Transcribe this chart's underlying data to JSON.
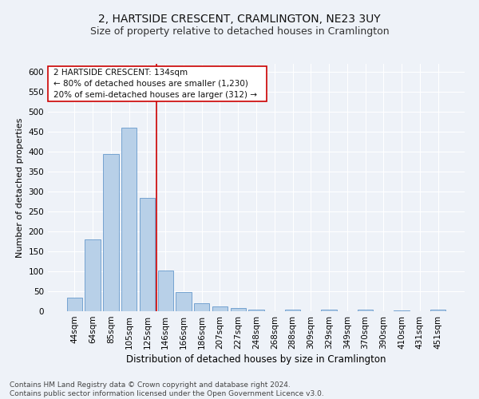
{
  "title": "2, HARTSIDE CRESCENT, CRAMLINGTON, NE23 3UY",
  "subtitle": "Size of property relative to detached houses in Cramlington",
  "xlabel": "Distribution of detached houses by size in Cramlington",
  "ylabel": "Number of detached properties",
  "categories": [
    "44sqm",
    "64sqm",
    "85sqm",
    "105sqm",
    "125sqm",
    "146sqm",
    "166sqm",
    "186sqm",
    "207sqm",
    "227sqm",
    "248sqm",
    "268sqm",
    "288sqm",
    "309sqm",
    "329sqm",
    "349sqm",
    "370sqm",
    "390sqm",
    "410sqm",
    "431sqm",
    "451sqm"
  ],
  "values": [
    35,
    180,
    395,
    460,
    285,
    102,
    49,
    20,
    13,
    8,
    5,
    0,
    5,
    0,
    5,
    0,
    5,
    0,
    3,
    0,
    5
  ],
  "bar_color": "#b8d0e8",
  "bar_edgecolor": "#6699cc",
  "vline_x": 4.5,
  "vline_color": "#cc0000",
  "annotation_line1": "2 HARTSIDE CRESCENT: 134sqm",
  "annotation_line2": "← 80% of detached houses are smaller (1,230)",
  "annotation_line3": "20% of semi-detached houses are larger (312) →",
  "ylim": [
    0,
    620
  ],
  "yticks": [
    0,
    50,
    100,
    150,
    200,
    250,
    300,
    350,
    400,
    450,
    500,
    550,
    600
  ],
  "footnote": "Contains HM Land Registry data © Crown copyright and database right 2024.\nContains public sector information licensed under the Open Government Licence v3.0.",
  "background_color": "#eef2f8",
  "plot_background_color": "#eef2f8",
  "grid_color": "#ffffff",
  "title_fontsize": 10,
  "subtitle_fontsize": 9,
  "xlabel_fontsize": 8.5,
  "ylabel_fontsize": 8,
  "tick_fontsize": 7.5,
  "annotation_fontsize": 7.5,
  "footnote_fontsize": 6.5
}
